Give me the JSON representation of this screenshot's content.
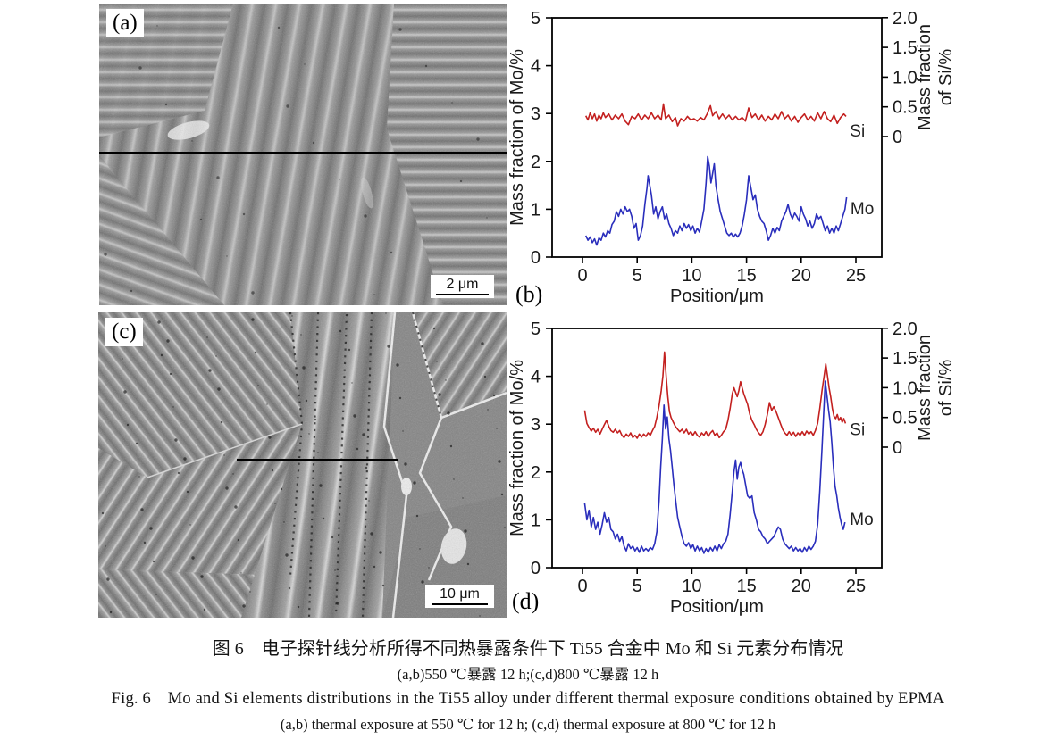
{
  "figure": {
    "panels": {
      "a": {
        "label": "(a)",
        "scale_bar": "2 μm"
      },
      "c": {
        "label": "(c)",
        "scale_bar": "10 μm"
      }
    },
    "captions": {
      "cn_title": "图 6　电子探针线分析所得不同热暴露条件下 Ti55 合金中 Mo 和 Si 元素分布情况",
      "cn_sub": "(a,b)550 ℃暴露 12 h;(c,d)800 ℃暴露 12 h",
      "en_title": "Fig. 6　Mo and Si elements distributions in the Ti55 alloy under different thermal exposure conditions obtained by EPMA",
      "en_sub": "(a,b) thermal exposure at 550 ℃ for 12 h; (c,d) thermal exposure at 800 ℃ for 12 h"
    },
    "colors": {
      "mo_line": "#2a2ebc",
      "si_line": "#c3201f",
      "scan_line": "#000000"
    }
  },
  "chart_data": [
    {
      "id": "b",
      "type": "line",
      "panel_label": "(b)",
      "xlabel": "Position/μm",
      "ylabel_left": "Mass fraction of Mo/%",
      "ylabel_right_lines": [
        "Mass fraction",
        "of Si/%"
      ],
      "xlim": [
        0,
        25
      ],
      "xticks": [
        0,
        5,
        10,
        15,
        20,
        25
      ],
      "ylim_left": [
        0,
        5
      ],
      "yticks_left": [
        0,
        1,
        2,
        3,
        4,
        5
      ],
      "right_axis": {
        "ticks": [
          0,
          0.5,
          1.0,
          1.5,
          2.0
        ],
        "note": "right-axis 0 aligns with left value 2.5; right 2.0 aligns with left 5"
      },
      "series": [
        {
          "name": "Si",
          "axis": "right",
          "color": "#c3201f",
          "label_xy": [
            24.45,
            0.0
          ],
          "points_xy": [
            0.3,
            0.35,
            0.5,
            0.28,
            0.7,
            0.4,
            0.9,
            0.3,
            1.1,
            0.38,
            1.3,
            0.26,
            1.5,
            0.36,
            1.7,
            0.3,
            1.9,
            0.4,
            2.1,
            0.32,
            2.4,
            0.38,
            2.7,
            0.28,
            3.0,
            0.36,
            3.3,
            0.3,
            3.6,
            0.38,
            3.9,
            0.26,
            4.2,
            0.2,
            4.5,
            0.34,
            4.8,
            0.3,
            5.1,
            0.38,
            5.4,
            0.28,
            5.7,
            0.36,
            6.0,
            0.3,
            6.3,
            0.4,
            6.6,
            0.3,
            6.9,
            0.36,
            7.2,
            0.28,
            7.4,
            0.55,
            7.6,
            0.3,
            7.9,
            0.36,
            8.2,
            0.25,
            8.5,
            0.32,
            8.7,
            0.18,
            9.0,
            0.3,
            9.3,
            0.26,
            9.6,
            0.34,
            9.9,
            0.28,
            10.2,
            0.3,
            10.5,
            0.26,
            10.8,
            0.32,
            11.1,
            0.28,
            11.4,
            0.38,
            11.7,
            0.52,
            11.9,
            0.35,
            12.2,
            0.42,
            12.5,
            0.3,
            12.8,
            0.38,
            13.1,
            0.3,
            13.4,
            0.36,
            13.7,
            0.28,
            14.0,
            0.34,
            14.3,
            0.28,
            14.6,
            0.32,
            14.9,
            0.26,
            15.2,
            0.48,
            15.5,
            0.32,
            15.8,
            0.38,
            16.1,
            0.28,
            16.4,
            0.36,
            16.7,
            0.26,
            17.0,
            0.34,
            17.3,
            0.28,
            17.6,
            0.38,
            17.9,
            0.3,
            18.2,
            0.42,
            18.5,
            0.3,
            18.8,
            0.36,
            19.1,
            0.26,
            19.4,
            0.34,
            19.7,
            0.24,
            20.0,
            0.32,
            20.3,
            0.38,
            20.6,
            0.28,
            20.9,
            0.34,
            21.2,
            0.26,
            21.5,
            0.4,
            21.8,
            0.3,
            22.1,
            0.42,
            22.4,
            0.3,
            22.7,
            0.25,
            23.0,
            0.36,
            23.3,
            0.22,
            23.6,
            0.32,
            23.9,
            0.38,
            24.1,
            0.34
          ]
        },
        {
          "name": "Mo",
          "axis": "left",
          "color": "#2a2ebc",
          "label_xy": [
            24.5,
            0.9
          ],
          "points_xy": [
            0.3,
            0.45,
            0.5,
            0.35,
            0.7,
            0.42,
            0.9,
            0.3,
            1.1,
            0.38,
            1.3,
            0.25,
            1.5,
            0.4,
            1.7,
            0.35,
            1.9,
            0.5,
            2.1,
            0.42,
            2.3,
            0.55,
            2.5,
            0.5,
            2.7,
            0.68,
            2.9,
            0.75,
            3.1,
            0.95,
            3.3,
            0.85,
            3.5,
            1.0,
            3.7,
            0.9,
            3.9,
            1.05,
            4.1,
            0.95,
            4.3,
            1.0,
            4.5,
            0.85,
            4.7,
            0.6,
            4.9,
            0.7,
            5.1,
            0.35,
            5.3,
            0.45,
            5.5,
            0.65,
            5.7,
            1.1,
            5.9,
            1.45,
            6.0,
            1.7,
            6.15,
            1.5,
            6.3,
            1.3,
            6.5,
            0.9,
            6.7,
            1.05,
            6.9,
            0.8,
            7.1,
            0.95,
            7.3,
            1.05,
            7.5,
            0.8,
            7.7,
            0.9,
            7.9,
            0.7,
            8.1,
            0.6,
            8.3,
            0.45,
            8.5,
            0.55,
            8.7,
            0.5,
            8.9,
            0.65,
            9.1,
            0.55,
            9.3,
            0.7,
            9.5,
            0.6,
            9.7,
            0.68,
            9.9,
            0.55,
            10.1,
            0.65,
            10.3,
            0.5,
            10.5,
            0.6,
            10.7,
            0.52,
            10.9,
            0.75,
            11.1,
            1.0,
            11.3,
            1.55,
            11.45,
            2.1,
            11.6,
            1.9,
            11.75,
            1.55,
            11.9,
            1.75,
            12.05,
            1.95,
            12.2,
            1.5,
            12.4,
            1.2,
            12.6,
            0.95,
            12.8,
            0.8,
            13.0,
            0.65,
            13.2,
            0.5,
            13.4,
            0.45,
            13.6,
            0.5,
            13.8,
            0.42,
            14.0,
            0.48,
            14.2,
            0.42,
            14.4,
            0.5,
            14.6,
            0.65,
            14.8,
            0.9,
            15.0,
            1.2,
            15.2,
            1.7,
            15.4,
            1.45,
            15.6,
            1.2,
            15.8,
            1.3,
            16.0,
            1.0,
            16.2,
            0.85,
            16.4,
            0.75,
            16.6,
            0.7,
            16.8,
            0.55,
            17.0,
            0.35,
            17.2,
            0.45,
            17.4,
            0.6,
            17.6,
            0.5,
            17.8,
            0.62,
            18.0,
            0.55,
            18.2,
            0.75,
            18.4,
            0.85,
            18.6,
            0.95,
            18.8,
            1.1,
            19.0,
            0.9,
            19.2,
            0.8,
            19.4,
            0.92,
            19.6,
            0.85,
            19.8,
            0.75,
            20.0,
            1.05,
            20.2,
            0.9,
            20.4,
            0.8,
            20.6,
            0.65,
            20.8,
            0.75,
            21.0,
            0.6,
            21.2,
            0.7,
            21.4,
            0.9,
            21.6,
            0.8,
            21.8,
            0.85,
            22.0,
            0.7,
            22.2,
            0.55,
            22.4,
            0.65,
            22.6,
            0.5,
            22.8,
            0.6,
            23.0,
            0.5,
            23.2,
            0.65,
            23.4,
            0.55,
            23.6,
            0.7,
            23.8,
            0.85,
            24.0,
            1.0,
            24.15,
            1.25
          ]
        }
      ]
    },
    {
      "id": "d",
      "type": "line",
      "panel_label": "(d)",
      "xlabel": "Position/μm",
      "ylabel_left": "Mass fraction of Mo/%",
      "ylabel_right_lines": [
        "Mass fraction",
        "of Si/%"
      ],
      "xlim": [
        0,
        25
      ],
      "xticks": [
        0,
        5,
        10,
        15,
        20,
        25
      ],
      "ylim_left": [
        0,
        5
      ],
      "yticks_left": [
        0,
        1,
        2,
        3,
        4,
        5
      ],
      "right_axis": {
        "ticks": [
          0,
          0.5,
          1.0,
          1.5,
          2.0
        ],
        "note": "right-axis 0 aligns with left value 2.5; right 2.0 aligns with left 5"
      },
      "series": [
        {
          "name": "Si",
          "axis": "right",
          "color": "#c3201f",
          "label_xy": [
            24.45,
            0.2
          ],
          "points_xy": [
            0.2,
            0.62,
            0.4,
            0.4,
            0.6,
            0.33,
            0.8,
            0.27,
            1.0,
            0.32,
            1.2,
            0.25,
            1.4,
            0.3,
            1.6,
            0.22,
            1.8,
            0.3,
            2.0,
            0.38,
            2.2,
            0.45,
            2.4,
            0.35,
            2.6,
            0.28,
            2.8,
            0.25,
            3.0,
            0.3,
            3.2,
            0.24,
            3.4,
            0.28,
            3.6,
            0.2,
            3.8,
            0.16,
            4.0,
            0.22,
            4.2,
            0.18,
            4.4,
            0.24,
            4.6,
            0.16,
            4.8,
            0.2,
            5.0,
            0.15,
            5.2,
            0.22,
            5.4,
            0.17,
            5.6,
            0.22,
            5.8,
            0.18,
            6.0,
            0.24,
            6.2,
            0.2,
            6.4,
            0.28,
            6.6,
            0.35,
            6.8,
            0.5,
            7.0,
            0.7,
            7.2,
            0.95,
            7.35,
            1.2,
            7.5,
            1.6,
            7.65,
            1.2,
            7.8,
            0.85,
            7.95,
            0.6,
            8.1,
            0.5,
            8.3,
            0.42,
            8.5,
            0.35,
            8.7,
            0.3,
            8.9,
            0.26,
            9.1,
            0.3,
            9.3,
            0.24,
            9.5,
            0.3,
            9.7,
            0.22,
            9.9,
            0.26,
            10.1,
            0.2,
            10.3,
            0.26,
            10.5,
            0.2,
            10.7,
            0.17,
            10.9,
            0.24,
            11.1,
            0.2,
            11.3,
            0.26,
            11.5,
            0.18,
            11.7,
            0.24,
            11.9,
            0.28,
            12.1,
            0.2,
            12.3,
            0.24,
            12.5,
            0.16,
            12.7,
            0.2,
            12.9,
            0.26,
            13.1,
            0.3,
            13.3,
            0.45,
            13.5,
            0.65,
            13.7,
            0.9,
            13.85,
            1.0,
            14.0,
            0.92,
            14.15,
            0.85,
            14.3,
            0.95,
            14.45,
            1.1,
            14.6,
            1.0,
            14.75,
            0.9,
            14.9,
            0.82,
            15.1,
            0.72,
            15.3,
            0.55,
            15.5,
            0.45,
            15.7,
            0.38,
            15.9,
            0.3,
            16.1,
            0.24,
            16.3,
            0.2,
            16.5,
            0.26,
            16.7,
            0.38,
            16.9,
            0.55,
            17.1,
            0.75,
            17.3,
            0.62,
            17.5,
            0.68,
            17.7,
            0.6,
            17.9,
            0.5,
            18.1,
            0.4,
            18.3,
            0.3,
            18.5,
            0.24,
            18.7,
            0.2,
            18.9,
            0.26,
            19.1,
            0.2,
            19.3,
            0.25,
            19.5,
            0.18,
            19.7,
            0.24,
            19.9,
            0.2,
            20.1,
            0.26,
            20.3,
            0.2,
            20.5,
            0.27,
            20.7,
            0.22,
            20.9,
            0.26,
            21.1,
            0.2,
            21.3,
            0.28,
            21.5,
            0.4,
            21.7,
            0.65,
            21.9,
            0.95,
            22.1,
            1.2,
            22.25,
            1.4,
            22.4,
            1.2,
            22.55,
            1.0,
            22.7,
            0.85,
            22.85,
            0.65,
            23.0,
            0.52,
            23.15,
            0.48,
            23.3,
            0.55,
            23.45,
            0.45,
            23.6,
            0.5,
            23.75,
            0.42,
            23.9,
            0.48,
            24.05,
            0.4
          ]
        },
        {
          "name": "Mo",
          "axis": "left",
          "color": "#2a2ebc",
          "label_xy": [
            24.45,
            0.9
          ],
          "points_xy": [
            0.2,
            1.35,
            0.4,
            1.0,
            0.6,
            1.2,
            0.8,
            0.85,
            1.0,
            1.05,
            1.2,
            0.8,
            1.4,
            0.95,
            1.6,
            0.7,
            1.8,
            0.9,
            2.0,
            1.15,
            2.2,
            0.95,
            2.4,
            1.05,
            2.6,
            0.8,
            2.8,
            0.75,
            3.0,
            0.6,
            3.2,
            0.7,
            3.4,
            0.55,
            3.6,
            0.65,
            3.8,
            0.45,
            4.0,
            0.35,
            4.2,
            0.5,
            4.4,
            0.4,
            4.6,
            0.45,
            4.8,
            0.35,
            5.0,
            0.42,
            5.2,
            0.32,
            5.4,
            0.45,
            5.6,
            0.35,
            5.8,
            0.4,
            6.0,
            0.35,
            6.2,
            0.42,
            6.4,
            0.38,
            6.6,
            0.5,
            6.8,
            0.75,
            7.0,
            1.4,
            7.15,
            2.1,
            7.3,
            2.7,
            7.45,
            3.4,
            7.6,
            2.9,
            7.75,
            3.15,
            7.9,
            2.7,
            8.05,
            2.45,
            8.2,
            2.1,
            8.35,
            1.75,
            8.5,
            1.45,
            8.7,
            1.05,
            8.9,
            0.85,
            9.1,
            0.65,
            9.3,
            0.5,
            9.5,
            0.45,
            9.7,
            0.52,
            9.9,
            0.4,
            10.1,
            0.48,
            10.3,
            0.35,
            10.5,
            0.45,
            10.7,
            0.35,
            10.9,
            0.42,
            11.1,
            0.3,
            11.3,
            0.4,
            11.5,
            0.32,
            11.7,
            0.42,
            11.9,
            0.35,
            12.1,
            0.45,
            12.3,
            0.35,
            12.5,
            0.48,
            12.7,
            0.4,
            12.9,
            0.5,
            13.1,
            0.55,
            13.3,
            0.7,
            13.5,
            1.1,
            13.7,
            1.6,
            13.85,
            2.0,
            14.0,
            2.25,
            14.15,
            1.85,
            14.3,
            2.1,
            14.45,
            2.2,
            14.6,
            2.05,
            14.75,
            1.95,
            14.9,
            1.75,
            15.1,
            1.5,
            15.3,
            1.45,
            15.5,
            1.5,
            15.7,
            1.15,
            15.9,
            1.0,
            16.1,
            0.8,
            16.3,
            0.75,
            16.5,
            0.65,
            16.7,
            0.6,
            16.9,
            0.5,
            17.1,
            0.55,
            17.3,
            0.6,
            17.5,
            0.65,
            17.7,
            0.75,
            17.9,
            0.85,
            18.1,
            0.8,
            18.3,
            0.6,
            18.5,
            0.5,
            18.7,
            0.45,
            18.9,
            0.4,
            19.1,
            0.45,
            19.3,
            0.35,
            19.5,
            0.42,
            19.7,
            0.35,
            19.9,
            0.4,
            20.1,
            0.32,
            20.3,
            0.42,
            20.5,
            0.35,
            20.7,
            0.45,
            20.9,
            0.38,
            21.1,
            0.45,
            21.3,
            0.55,
            21.5,
            0.9,
            21.7,
            1.6,
            21.9,
            2.5,
            22.05,
            3.2,
            22.2,
            3.9,
            22.35,
            3.6,
            22.5,
            3.3,
            22.65,
            3.05,
            22.8,
            2.6,
            22.95,
            2.1,
            23.1,
            1.7,
            23.25,
            1.5,
            23.4,
            1.25,
            23.55,
            1.05,
            23.7,
            0.9,
            23.85,
            0.8,
            24.0,
            0.95
          ]
        }
      ]
    }
  ]
}
